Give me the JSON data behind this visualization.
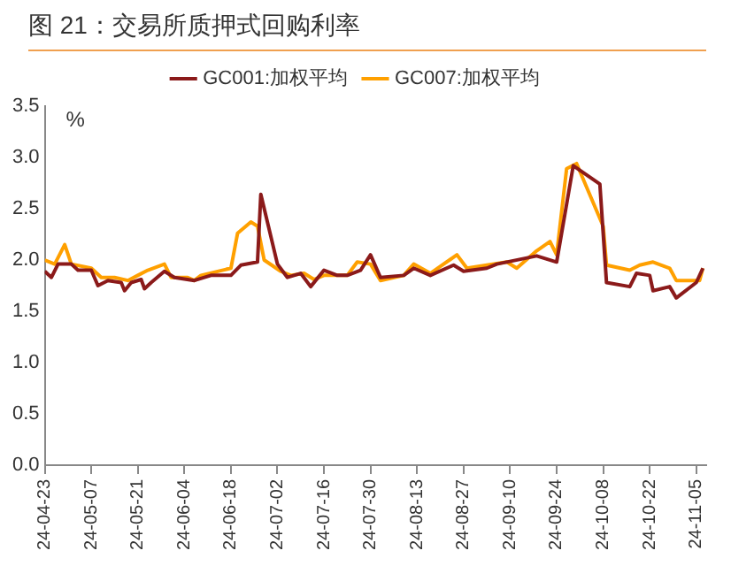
{
  "chart_data": {
    "type": "line",
    "title": "图 21：交易所质押式回购利率",
    "ylabel": "%",
    "xlim": [
      "--04-23",
      "--11-08"
    ],
    "xticks": [
      {
        "value": "--04-23",
        "label": "24-04-23"
      },
      {
        "value": "--05-07",
        "label": "24-05-07"
      },
      {
        "value": "--05-21",
        "label": "24-05-21"
      },
      {
        "value": "--06-04",
        "label": "24-06-04"
      },
      {
        "value": "--06-18",
        "label": "24-06-18"
      },
      {
        "value": "--07-02",
        "label": "24-07-02"
      },
      {
        "value": "--07-16",
        "label": "24-07-16"
      },
      {
        "value": "--07-30",
        "label": "24-07-30"
      },
      {
        "value": "--08-13",
        "label": "24-08-13"
      },
      {
        "value": "--08-27",
        "label": "24-08-27"
      },
      {
        "value": "--09-10",
        "label": "24-09-10"
      },
      {
        "value": "--09-24",
        "label": "24-09-24"
      },
      {
        "value": "--10-08",
        "label": "24-10-08"
      },
      {
        "value": "--10-22",
        "label": "24-10-22"
      },
      {
        "value": "--11-05",
        "label": "24-11-05"
      }
    ],
    "ylim": [
      0,
      3.5
    ],
    "yticks": [
      {
        "value": 0,
        "label": "0.0"
      },
      {
        "value": 0.5,
        "label": "0.5"
      },
      {
        "value": 1,
        "label": "1.0"
      },
      {
        "value": 1.5,
        "label": "1.5"
      },
      {
        "value": 2,
        "label": "2.0"
      },
      {
        "value": 2.5,
        "label": "2.5"
      },
      {
        "value": 3,
        "label": "3.0"
      },
      {
        "value": 3.5,
        "label": "3.5"
      }
    ],
    "grid": false,
    "legend": "top",
    "marker": "none",
    "line_style": "solid",
    "series": [
      {
        "name": "GC001:加权平均",
        "color": "#8b1a1a",
        "x": [
          "--04-23",
          "--04-25",
          "--04-27",
          "--05-01",
          "--05-03",
          "--05-07",
          "--05-09",
          "--05-12",
          "--05-16",
          "--05-17",
          "--05-19",
          "--05-22",
          "--05-23",
          "--05-25",
          "--05-29",
          "--06-01",
          "--06-07",
          "--06-12",
          "--06-18",
          "--06-21",
          "--06-26",
          "--06-27",
          "--07-02",
          "--07-05",
          "--07-09",
          "--07-12",
          "--07-16",
          "--07-20",
          "--07-23",
          "--07-27",
          "--07-30",
          "--08-02",
          "--08-09",
          "--08-12",
          "--08-17",
          "--08-24",
          "--08-27",
          "--09-03",
          "--09-06",
          "--09-18",
          "--09-24",
          "--09-29",
          "--10-07",
          "--10-09",
          "--10-16",
          "--10-18",
          "--10-22",
          "--10-23",
          "--10-28",
          "--10-30",
          "--11-05",
          "--11-07"
        ],
        "values": [
          1.89,
          1.83,
          1.96,
          1.96,
          1.9,
          1.9,
          1.75,
          1.8,
          1.78,
          1.7,
          1.78,
          1.81,
          1.72,
          1.78,
          1.89,
          1.83,
          1.8,
          1.85,
          1.85,
          1.95,
          1.98,
          2.64,
          1.96,
          1.83,
          1.87,
          1.74,
          1.9,
          1.85,
          1.85,
          1.9,
          2.05,
          1.83,
          1.85,
          1.92,
          1.85,
          1.95,
          1.89,
          1.92,
          1.96,
          2.04,
          1.98,
          2.92,
          2.74,
          1.78,
          1.74,
          1.87,
          1.85,
          1.7,
          1.74,
          1.63,
          1.78,
          1.92
        ]
      },
      {
        "name": "GC007:加权平均",
        "color": "#ffa000",
        "x": [
          "--04-23",
          "--04-26",
          "--04-29",
          "--05-01",
          "--05-07",
          "--05-10",
          "--05-14",
          "--05-18",
          "--05-21",
          "--05-24",
          "--05-29",
          "--05-31",
          "--06-05",
          "--06-07",
          "--06-09",
          "--06-18",
          "--06-20",
          "--06-24",
          "--06-26",
          "--06-28",
          "--07-03",
          "--07-06",
          "--07-10",
          "--07-13",
          "--07-16",
          "--07-23",
          "--07-26",
          "--07-30",
          "--08-02",
          "--08-09",
          "--08-12",
          "--08-17",
          "--08-25",
          "--08-28",
          "--09-03",
          "--09-09",
          "--09-12",
          "--09-18",
          "--09-22",
          "--09-24",
          "--09-27",
          "--09-30",
          "--10-08",
          "--10-09",
          "--10-16",
          "--10-19",
          "--10-23",
          "--10-28",
          "--10-30",
          "--11-06",
          "--11-07"
        ],
        "values": [
          2.0,
          1.96,
          2.15,
          1.96,
          1.92,
          1.83,
          1.83,
          1.8,
          1.85,
          1.9,
          1.96,
          1.83,
          1.83,
          1.8,
          1.85,
          1.92,
          2.26,
          2.37,
          2.33,
          2.0,
          1.89,
          1.85,
          1.87,
          1.81,
          1.85,
          1.85,
          1.98,
          1.96,
          1.8,
          1.85,
          1.96,
          1.87,
          2.05,
          1.92,
          1.95,
          1.98,
          1.92,
          2.09,
          2.18,
          2.05,
          2.89,
          2.94,
          2.33,
          1.95,
          1.9,
          1.95,
          1.98,
          1.92,
          1.8,
          1.8,
          1.92
        ]
      }
    ]
  }
}
